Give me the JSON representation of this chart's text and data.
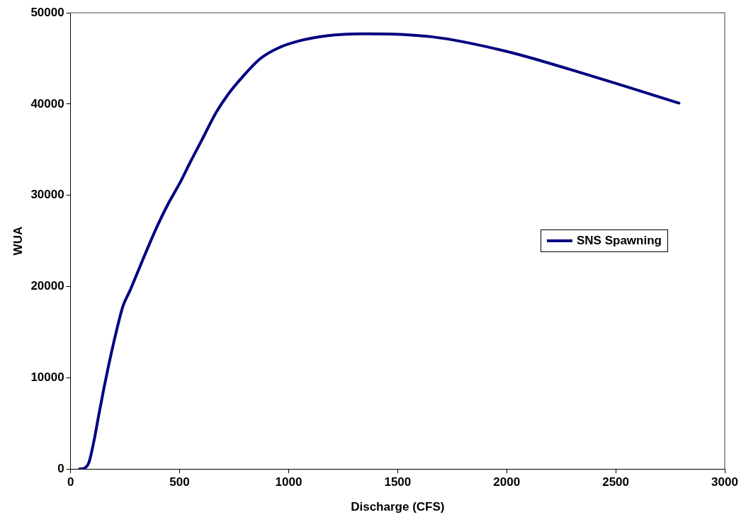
{
  "chart_data": {
    "type": "line",
    "xlabel": "Discharge (CFS)",
    "ylabel": "WUA",
    "xlim": [
      0,
      3000
    ],
    "xticks": [
      0,
      500,
      1000,
      1500,
      2000,
      2500,
      3000
    ],
    "ylim": [
      0,
      50000
    ],
    "yticks": [
      0,
      10000,
      20000,
      30000,
      40000,
      50000
    ],
    "grid": false,
    "legend": "right",
    "marker": "none",
    "line_style": "solid",
    "series": [
      {
        "name": "SNS Spawning",
        "color": "#000080",
        "x": [
          41,
          64,
          84,
          108,
          131,
          152,
          172,
          206,
          240,
          274,
          328,
          396,
          450,
          504,
          545,
          599,
          667,
          721,
          789,
          870,
          951,
          1046,
          1182,
          1358,
          1656,
          1995,
          2401,
          2790
        ],
        "values": [
          0,
          100,
          720,
          3190,
          6150,
          8780,
          11090,
          14700,
          17830,
          19640,
          22760,
          26550,
          29180,
          31480,
          33450,
          35920,
          39050,
          41020,
          42990,
          44970,
          46120,
          46900,
          47500,
          47700,
          47370,
          45790,
          42990,
          40100
        ]
      }
    ]
  }
}
